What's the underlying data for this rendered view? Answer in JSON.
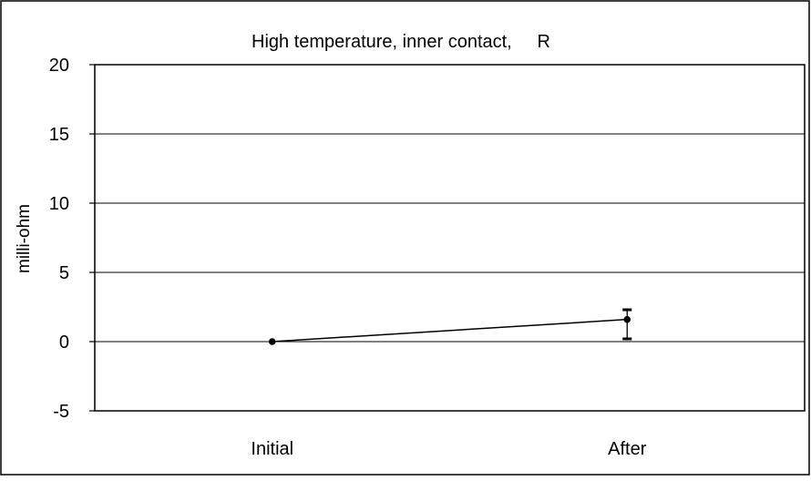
{
  "chart_data": {
    "type": "line",
    "title": "High temperature, inner contact,     R",
    "xlabel": "",
    "ylabel": "milli-ohm",
    "categories": [
      "Initial",
      "After"
    ],
    "ylim": [
      -5,
      20
    ],
    "yticks": [
      -5,
      0,
      5,
      10,
      15,
      20
    ],
    "grid": true,
    "legend": "none",
    "series": [
      {
        "values": [
          0.0,
          1.6
        ],
        "error_low": [
          0.0,
          0.2
        ],
        "error_high": [
          0.0,
          2.3
        ]
      }
    ]
  }
}
